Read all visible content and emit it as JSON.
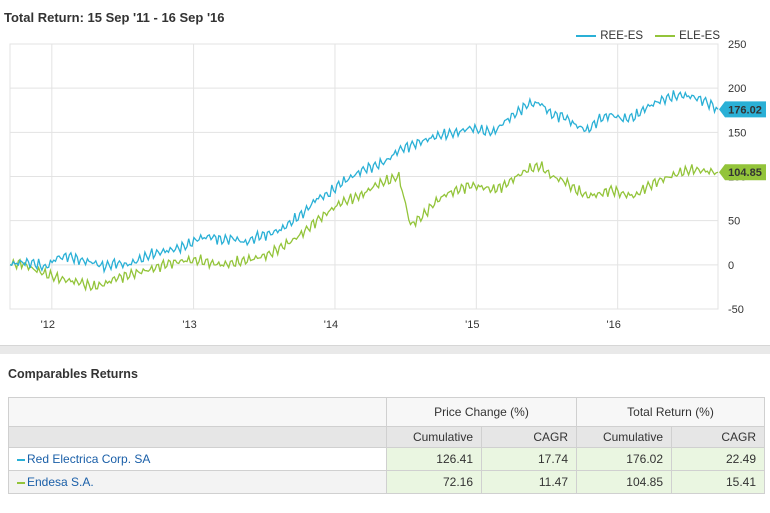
{
  "title": "Total Return: 15 Sep '11 - 16 Sep '16",
  "colors": {
    "ree": "#2ab0d6",
    "ele": "#93c43a",
    "grid": "#e3e3e3"
  },
  "chart_data": {
    "type": "line",
    "title": "Total Return: 15 Sep '11 - 16 Sep '16",
    "x_range": [
      "2011-09-15",
      "2016-09-16"
    ],
    "ylim": [
      -50,
      250
    ],
    "yticks": [
      -50,
      0,
      50,
      100,
      150,
      200,
      250
    ],
    "xticks": [
      {
        "date": "2012-01-01",
        "label": "'12"
      },
      {
        "date": "2013-01-01",
        "label": "'13"
      },
      {
        "date": "2014-01-01",
        "label": "'14"
      },
      {
        "date": "2015-01-01",
        "label": "'15"
      },
      {
        "date": "2016-01-01",
        "label": "'16"
      }
    ],
    "grid": true,
    "legend": "top-right",
    "series": [
      {
        "name": "REE-ES",
        "color": "#2ab0d6",
        "last_value": "176.02",
        "points": [
          [
            "2011-09-15",
            0
          ],
          [
            "2011-10-15",
            3
          ],
          [
            "2011-11-15",
            2
          ],
          [
            "2011-12-15",
            -3
          ],
          [
            "2012-01-15",
            8
          ],
          [
            "2012-02-15",
            10
          ],
          [
            "2012-03-15",
            5
          ],
          [
            "2012-04-15",
            3
          ],
          [
            "2012-05-15",
            -2
          ],
          [
            "2012-06-15",
            2
          ],
          [
            "2012-07-15",
            0
          ],
          [
            "2012-08-15",
            6
          ],
          [
            "2012-09-15",
            12
          ],
          [
            "2012-10-15",
            15
          ],
          [
            "2012-11-15",
            18
          ],
          [
            "2012-12-15",
            22
          ],
          [
            "2013-01-15",
            30
          ],
          [
            "2013-02-15",
            32
          ],
          [
            "2013-03-15",
            28
          ],
          [
            "2013-04-15",
            30
          ],
          [
            "2013-05-15",
            25
          ],
          [
            "2013-06-15",
            32
          ],
          [
            "2013-07-15",
            35
          ],
          [
            "2013-08-15",
            40
          ],
          [
            "2013-09-15",
            50
          ],
          [
            "2013-10-15",
            60
          ],
          [
            "2013-11-15",
            75
          ],
          [
            "2013-12-15",
            80
          ],
          [
            "2014-01-15",
            92
          ],
          [
            "2014-02-15",
            100
          ],
          [
            "2014-03-15",
            108
          ],
          [
            "2014-04-15",
            112
          ],
          [
            "2014-05-15",
            118
          ],
          [
            "2014-06-15",
            130
          ],
          [
            "2014-07-15",
            135
          ],
          [
            "2014-08-15",
            140
          ],
          [
            "2014-09-15",
            145
          ],
          [
            "2014-10-15",
            148
          ],
          [
            "2014-11-15",
            150
          ],
          [
            "2014-12-15",
            155
          ],
          [
            "2015-01-15",
            152
          ],
          [
            "2015-02-15",
            150
          ],
          [
            "2015-03-15",
            162
          ],
          [
            "2015-04-15",
            172
          ],
          [
            "2015-05-15",
            182
          ],
          [
            "2015-06-15",
            183
          ],
          [
            "2015-07-15",
            170
          ],
          [
            "2015-08-15",
            168
          ],
          [
            "2015-09-15",
            158
          ],
          [
            "2015-10-15",
            152
          ],
          [
            "2015-11-15",
            165
          ],
          [
            "2015-12-15",
            170
          ],
          [
            "2016-01-15",
            165
          ],
          [
            "2016-02-15",
            168
          ],
          [
            "2016-03-15",
            178
          ],
          [
            "2016-04-15",
            185
          ],
          [
            "2016-05-15",
            190
          ],
          [
            "2016-06-15",
            192
          ],
          [
            "2016-07-15",
            190
          ],
          [
            "2016-08-15",
            185
          ],
          [
            "2016-09-16",
            176.02
          ]
        ]
      },
      {
        "name": "ELE-ES",
        "color": "#93c43a",
        "last_value": "104.85",
        "points": [
          [
            "2011-09-15",
            0
          ],
          [
            "2011-10-15",
            2
          ],
          [
            "2011-11-15",
            -5
          ],
          [
            "2011-12-15",
            -10
          ],
          [
            "2012-01-15",
            -15
          ],
          [
            "2012-02-15",
            -18
          ],
          [
            "2012-03-15",
            -20
          ],
          [
            "2012-04-15",
            -25
          ],
          [
            "2012-05-15",
            -22
          ],
          [
            "2012-06-15",
            -15
          ],
          [
            "2012-07-15",
            -12
          ],
          [
            "2012-08-15",
            -8
          ],
          [
            "2012-09-15",
            -5
          ],
          [
            "2012-10-15",
            0
          ],
          [
            "2012-11-15",
            3
          ],
          [
            "2012-12-15",
            5
          ],
          [
            "2013-01-15",
            5
          ],
          [
            "2013-02-15",
            2
          ],
          [
            "2013-03-15",
            0
          ],
          [
            "2013-04-15",
            2
          ],
          [
            "2013-05-15",
            5
          ],
          [
            "2013-06-15",
            8
          ],
          [
            "2013-07-15",
            12
          ],
          [
            "2013-08-15",
            20
          ],
          [
            "2013-09-15",
            28
          ],
          [
            "2013-10-15",
            38
          ],
          [
            "2013-11-15",
            50
          ],
          [
            "2013-12-15",
            60
          ],
          [
            "2014-01-15",
            70
          ],
          [
            "2014-02-15",
            75
          ],
          [
            "2014-03-15",
            80
          ],
          [
            "2014-04-15",
            90
          ],
          [
            "2014-05-15",
            95
          ],
          [
            "2014-06-15",
            100
          ],
          [
            "2014-07-15",
            45
          ],
          [
            "2014-08-15",
            55
          ],
          [
            "2014-09-15",
            70
          ],
          [
            "2014-10-15",
            80
          ],
          [
            "2014-11-15",
            85
          ],
          [
            "2014-12-15",
            90
          ],
          [
            "2015-01-15",
            88
          ],
          [
            "2015-02-15",
            85
          ],
          [
            "2015-03-15",
            90
          ],
          [
            "2015-04-15",
            100
          ],
          [
            "2015-05-15",
            108
          ],
          [
            "2015-06-15",
            112
          ],
          [
            "2015-07-15",
            100
          ],
          [
            "2015-08-15",
            95
          ],
          [
            "2015-09-15",
            85
          ],
          [
            "2015-10-15",
            78
          ],
          [
            "2015-11-15",
            80
          ],
          [
            "2015-12-15",
            85
          ],
          [
            "2016-01-15",
            80
          ],
          [
            "2016-02-15",
            78
          ],
          [
            "2016-03-15",
            88
          ],
          [
            "2016-04-15",
            95
          ],
          [
            "2016-05-15",
            100
          ],
          [
            "2016-06-15",
            105
          ],
          [
            "2016-07-15",
            108
          ],
          [
            "2016-08-15",
            106
          ],
          [
            "2016-09-16",
            104.85
          ]
        ]
      }
    ]
  },
  "comparables": {
    "title": "Comparables Returns",
    "group_headers": [
      "Price Change (%)",
      "Total Return (%)"
    ],
    "sub_headers": [
      "Cumulative",
      "CAGR",
      "Cumulative",
      "CAGR"
    ],
    "rows": [
      {
        "name": "Red Electrica Corp. SA",
        "color": "#2ab0d6",
        "values": [
          "126.41",
          "17.74",
          "176.02",
          "22.49"
        ]
      },
      {
        "name": "Endesa S.A.",
        "color": "#93c43a",
        "values": [
          "72.16",
          "11.47",
          "104.85",
          "15.41"
        ]
      }
    ]
  }
}
